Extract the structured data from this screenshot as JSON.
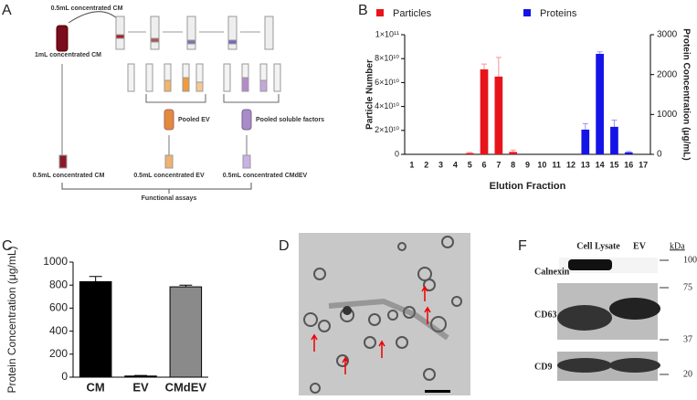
{
  "panel_labels": [
    "A",
    "B",
    "C",
    "D",
    "F"
  ],
  "diagram": {
    "top": "0.5mL concentrated CM",
    "start": "1mL concentrated CM",
    "pooled_ev": "Pooled EV",
    "pooled_soluble": "Pooled soluble factors",
    "out_cm": "0.5mL concentrated CM",
    "out_ev": "0.5mL concentrated EV",
    "out_cmdev": "0.5mL concentrated CMdEV",
    "assays": "Functional assays"
  },
  "blot": {
    "columns": [
      "Cell Lysate",
      "EV"
    ],
    "unit": "kDa",
    "rows": [
      "Calnexin",
      "CD63",
      "CD9"
    ],
    "markers": [
      100,
      75,
      37,
      20
    ]
  },
  "chart_data": [
    {
      "type": "bar",
      "x_label": "Elution Fraction",
      "y_label": "Particle Number",
      "y2_label": "Protein Concentration (μg/mL)",
      "categories": [
        "1",
        "2",
        "3",
        "4",
        "5",
        "6",
        "7",
        "8",
        "9",
        "10",
        "11",
        "12",
        "13",
        "14",
        "15",
        "16",
        "17"
      ],
      "series": [
        {
          "name": "Particles",
          "color": "#e8141b",
          "values": [
            0,
            0,
            0,
            0,
            1000000000,
            71000000000,
            65000000000,
            2000000000,
            0,
            0,
            0,
            0,
            0,
            0,
            0,
            0,
            0
          ],
          "errors": [
            null,
            null,
            null,
            null,
            500000000,
            4500000000,
            16000000000,
            1500000000,
            null,
            null,
            null,
            null,
            null,
            null,
            null,
            null,
            null
          ]
        },
        {
          "name": "Proteins",
          "color": "#1414e6",
          "axis": "y2",
          "values": [
            0,
            0,
            0,
            0,
            0,
            0,
            0,
            0,
            0,
            0,
            0,
            0,
            620,
            2520,
            690,
            50,
            0
          ],
          "errors": [
            null,
            null,
            null,
            null,
            null,
            null,
            null,
            null,
            null,
            null,
            null,
            null,
            150,
            50,
            170,
            20,
            null
          ]
        }
      ],
      "ylim": [
        0,
        100000000000
      ],
      "yticks": [
        0,
        {
          "value": 20000000000,
          "label": "2×10¹⁰"
        },
        {
          "value": 40000000000,
          "label": "4×10¹⁰"
        },
        {
          "value": 60000000000,
          "label": "6×10¹⁰"
        },
        {
          "value": 80000000000,
          "label": "8×10¹⁰"
        },
        {
          "value": 100000000000,
          "label": "1×10¹¹"
        }
      ],
      "y2lim": [
        0,
        3000
      ],
      "y2ticks": [
        0,
        1000,
        2000,
        3000
      ]
    },
    {
      "type": "bar",
      "y_label": "Protein Concentration (μg/mL)",
      "categories": [
        "CM",
        "EV",
        "CMdEV"
      ],
      "values": [
        830,
        10,
        785
      ],
      "errors": [
        45,
        5,
        15
      ],
      "colors": [
        "#000000",
        "#000000",
        "#8a8a8a"
      ],
      "ylim": [
        0,
        1000
      ],
      "yticks": [
        0,
        200,
        400,
        600,
        800,
        1000
      ]
    }
  ]
}
